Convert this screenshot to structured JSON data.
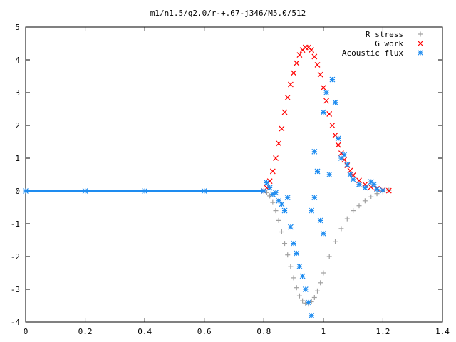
{
  "chart_data": {
    "type": "scatter",
    "title": "m1/n1.5/q2.0/r-+.67-j346/M5.0/512",
    "xlabel": "",
    "ylabel": "",
    "xlim": [
      0,
      1.4
    ],
    "ylim": [
      -4,
      5
    ],
    "x_ticks": [
      "0",
      "0.2",
      "0.4",
      "0.6",
      "0.8",
      "1",
      "1.2",
      "1.4"
    ],
    "y_ticks": [
      "-4",
      "-3",
      "-2",
      "-1",
      "0",
      "1",
      "2",
      "3",
      "4",
      "5"
    ],
    "grid": false,
    "legend_position": "top-right",
    "series": [
      {
        "name": "R stress",
        "marker": "plus",
        "color": "#a0a0a0",
        "points": [
          [
            0.0,
            0
          ],
          [
            0.2,
            0
          ],
          [
            0.4,
            0
          ],
          [
            0.6,
            0
          ],
          [
            0.8,
            0
          ],
          [
            0.81,
            -0.05
          ],
          [
            0.82,
            -0.15
          ],
          [
            0.83,
            -0.35
          ],
          [
            0.84,
            -0.6
          ],
          [
            0.85,
            -0.9
          ],
          [
            0.86,
            -1.25
          ],
          [
            0.87,
            -1.6
          ],
          [
            0.88,
            -1.95
          ],
          [
            0.89,
            -2.3
          ],
          [
            0.9,
            -2.65
          ],
          [
            0.91,
            -2.95
          ],
          [
            0.92,
            -3.2
          ],
          [
            0.93,
            -3.35
          ],
          [
            0.94,
            -3.42
          ],
          [
            0.95,
            -3.45
          ],
          [
            0.96,
            -3.38
          ],
          [
            0.97,
            -3.25
          ],
          [
            0.98,
            -3.05
          ],
          [
            0.99,
            -2.8
          ],
          [
            1.0,
            -2.5
          ],
          [
            1.02,
            -2.0
          ],
          [
            1.04,
            -1.55
          ],
          [
            1.06,
            -1.15
          ],
          [
            1.08,
            -0.85
          ],
          [
            1.1,
            -0.6
          ],
          [
            1.12,
            -0.45
          ],
          [
            1.14,
            -0.3
          ],
          [
            1.16,
            -0.18
          ],
          [
            1.18,
            -0.08
          ],
          [
            1.2,
            -0.02
          ],
          [
            1.22,
            0.02
          ]
        ]
      },
      {
        "name": "G work",
        "marker": "cross",
        "color": "#ff0000",
        "points": [
          [
            0.8,
            0
          ],
          [
            0.81,
            0.1
          ],
          [
            0.82,
            0.3
          ],
          [
            0.83,
            0.6
          ],
          [
            0.84,
            1.0
          ],
          [
            0.85,
            1.45
          ],
          [
            0.86,
            1.9
          ],
          [
            0.87,
            2.4
          ],
          [
            0.88,
            2.85
          ],
          [
            0.89,
            3.25
          ],
          [
            0.9,
            3.6
          ],
          [
            0.91,
            3.9
          ],
          [
            0.92,
            4.15
          ],
          [
            0.93,
            4.3
          ],
          [
            0.94,
            4.38
          ],
          [
            0.95,
            4.38
          ],
          [
            0.96,
            4.3
          ],
          [
            0.97,
            4.1
          ],
          [
            0.98,
            3.85
          ],
          [
            0.99,
            3.55
          ],
          [
            1.0,
            3.15
          ],
          [
            1.01,
            2.75
          ],
          [
            1.02,
            2.35
          ],
          [
            1.03,
            2.0
          ],
          [
            1.04,
            1.7
          ],
          [
            1.05,
            1.4
          ],
          [
            1.06,
            1.15
          ],
          [
            1.07,
            0.95
          ],
          [
            1.08,
            0.78
          ],
          [
            1.09,
            0.62
          ],
          [
            1.1,
            0.48
          ],
          [
            1.12,
            0.32
          ],
          [
            1.14,
            0.2
          ],
          [
            1.16,
            0.12
          ],
          [
            1.18,
            0.07
          ],
          [
            1.2,
            0.03
          ],
          [
            1.22,
            0.01
          ]
        ]
      },
      {
        "name": "Acoustic flux",
        "marker": "star",
        "color": "#1e8cf0",
        "points": [
          [
            0.0,
            0
          ],
          [
            0.2,
            0
          ],
          [
            0.4,
            0
          ],
          [
            0.6,
            0
          ],
          [
            0.8,
            0
          ],
          [
            0.81,
            0.25
          ],
          [
            0.82,
            0.1
          ],
          [
            0.83,
            -0.1
          ],
          [
            0.84,
            -0.05
          ],
          [
            0.85,
            -0.3
          ],
          [
            0.86,
            -0.4
          ],
          [
            0.87,
            -0.6
          ],
          [
            0.88,
            -0.2
          ],
          [
            0.89,
            -1.1
          ],
          [
            0.9,
            -1.6
          ],
          [
            0.91,
            -1.9
          ],
          [
            0.92,
            -2.3
          ],
          [
            0.93,
            -2.6
          ],
          [
            0.94,
            -3.0
          ],
          [
            0.95,
            -3.4
          ],
          [
            0.96,
            -3.8
          ],
          [
            0.96,
            -0.6
          ],
          [
            0.97,
            -0.2
          ],
          [
            0.97,
            1.2
          ],
          [
            0.98,
            0.6
          ],
          [
            0.99,
            -0.9
          ],
          [
            1.0,
            -1.3
          ],
          [
            1.0,
            2.4
          ],
          [
            1.01,
            3.0
          ],
          [
            1.02,
            0.5
          ],
          [
            1.03,
            3.4
          ],
          [
            1.04,
            2.7
          ],
          [
            1.05,
            1.6
          ],
          [
            1.06,
            1.0
          ],
          [
            1.07,
            1.1
          ],
          [
            1.08,
            0.8
          ],
          [
            1.09,
            0.5
          ],
          [
            1.1,
            0.35
          ],
          [
            1.12,
            0.2
          ],
          [
            1.14,
            0.1
          ],
          [
            1.16,
            0.28
          ],
          [
            1.17,
            0.2
          ],
          [
            1.18,
            0.05
          ],
          [
            1.2,
            0.02
          ]
        ]
      }
    ]
  }
}
